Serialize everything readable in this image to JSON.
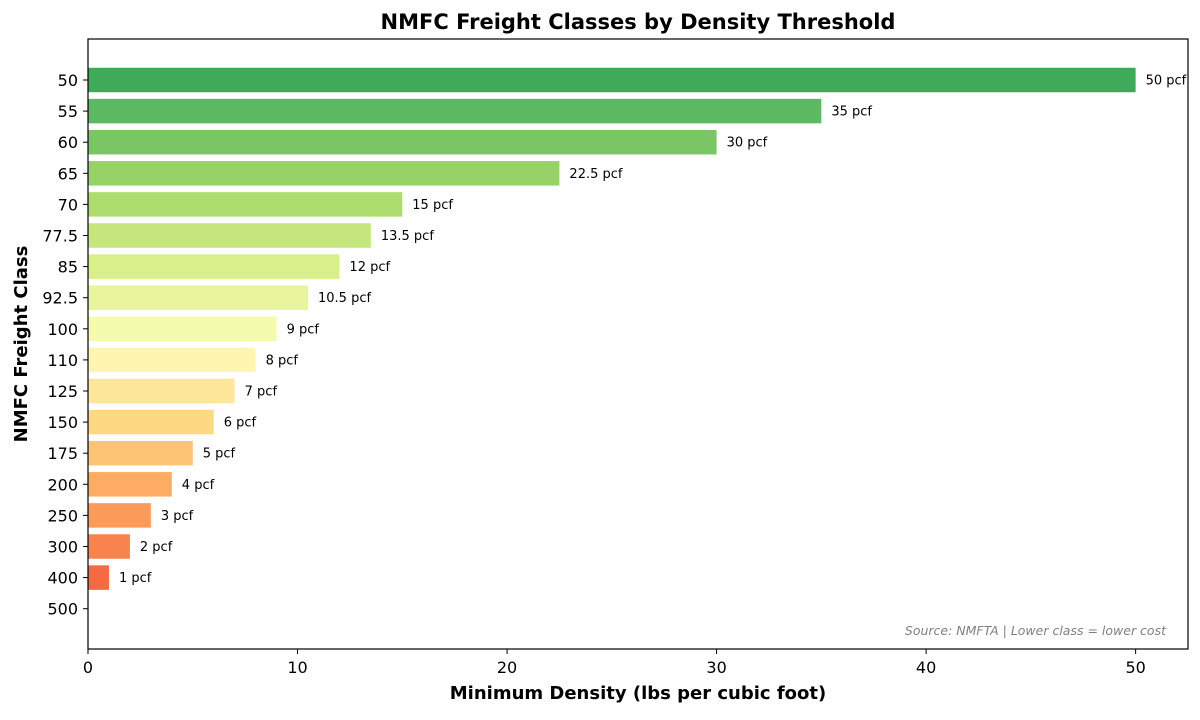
{
  "chart_data": {
    "type": "bar",
    "orientation": "horizontal",
    "title": "NMFC Freight Classes by Density Threshold",
    "xlabel": "Minimum Density (lbs per cubic foot)",
    "ylabel": "NMFC Freight Class",
    "xlim": [
      0,
      52.5
    ],
    "xticks": [
      "0",
      "10",
      "20",
      "30",
      "40",
      "50"
    ],
    "grid": false,
    "categories": [
      "50",
      "55",
      "60",
      "65",
      "70",
      "77.5",
      "85",
      "92.5",
      "100",
      "110",
      "125",
      "150",
      "175",
      "200",
      "250",
      "300",
      "400",
      "500"
    ],
    "values": [
      50,
      35,
      30,
      22.5,
      15,
      13.5,
      12,
      10.5,
      9,
      8,
      7,
      6,
      5,
      4,
      3,
      2,
      1,
      0
    ],
    "data_labels": [
      "50 pcf",
      "35 pcf",
      "30 pcf",
      "22.5 pcf",
      "15 pcf",
      "13.5 pcf",
      "12 pcf",
      "10.5 pcf",
      "9 pcf",
      "8 pcf",
      "7 pcf",
      "6 pcf",
      "5 pcf",
      "4 pcf",
      "3 pcf",
      "2 pcf",
      "1 pcf",
      ""
    ],
    "colors": [
      "#3faa59",
      "#5db961",
      "#7ac665",
      "#96d268",
      "#aedd6f",
      "#c4e67c",
      "#d8ef8a",
      "#e8f59c",
      "#f4faae",
      "#fef6b0",
      "#fee79a",
      "#fed883",
      "#fdc475",
      "#fdad63",
      "#fb9a59",
      "#f8834f",
      "#f46b43",
      "#e5543a"
    ],
    "annotation": "Source: NMFTA | Lower class = lower cost"
  }
}
